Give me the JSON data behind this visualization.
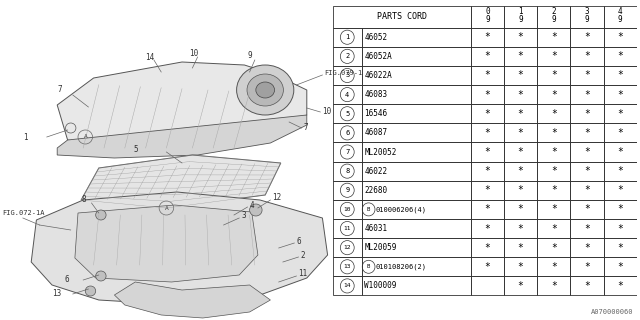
{
  "fig_code": "A070000060",
  "parts": [
    {
      "num": "1",
      "code": "46052",
      "cols": [
        true,
        true,
        true,
        true,
        true
      ]
    },
    {
      "num": "2",
      "code": "46052A",
      "cols": [
        true,
        true,
        true,
        true,
        true
      ]
    },
    {
      "num": "3",
      "code": "46022A",
      "cols": [
        true,
        true,
        true,
        true,
        true
      ]
    },
    {
      "num": "4",
      "code": "46083",
      "cols": [
        true,
        true,
        true,
        true,
        true
      ]
    },
    {
      "num": "5",
      "code": "16546",
      "cols": [
        true,
        true,
        true,
        true,
        true
      ]
    },
    {
      "num": "6",
      "code": "46087",
      "cols": [
        true,
        true,
        true,
        true,
        true
      ]
    },
    {
      "num": "7",
      "code": "ML20052",
      "cols": [
        true,
        true,
        true,
        true,
        true
      ]
    },
    {
      "num": "8",
      "code": "46022",
      "cols": [
        true,
        true,
        true,
        true,
        true
      ]
    },
    {
      "num": "9",
      "code": "22680",
      "cols": [
        true,
        true,
        true,
        true,
        true
      ]
    },
    {
      "num": "10",
      "code": "B010006206(4)",
      "cols": [
        true,
        true,
        true,
        true,
        true
      ]
    },
    {
      "num": "11",
      "code": "46031",
      "cols": [
        true,
        true,
        true,
        true,
        true
      ]
    },
    {
      "num": "12",
      "code": "ML20059",
      "cols": [
        true,
        true,
        true,
        true,
        true
      ]
    },
    {
      "num": "13",
      "code": "B010108206(2)",
      "cols": [
        true,
        true,
        true,
        true,
        true
      ]
    },
    {
      "num": "14",
      "code": "W100009",
      "cols": [
        false,
        true,
        true,
        true,
        true
      ]
    }
  ],
  "bg_color": "#ffffff",
  "text_color": "#000000",
  "gray_color": "#888888",
  "light_gray": "#cccccc",
  "dark_gray": "#555555"
}
